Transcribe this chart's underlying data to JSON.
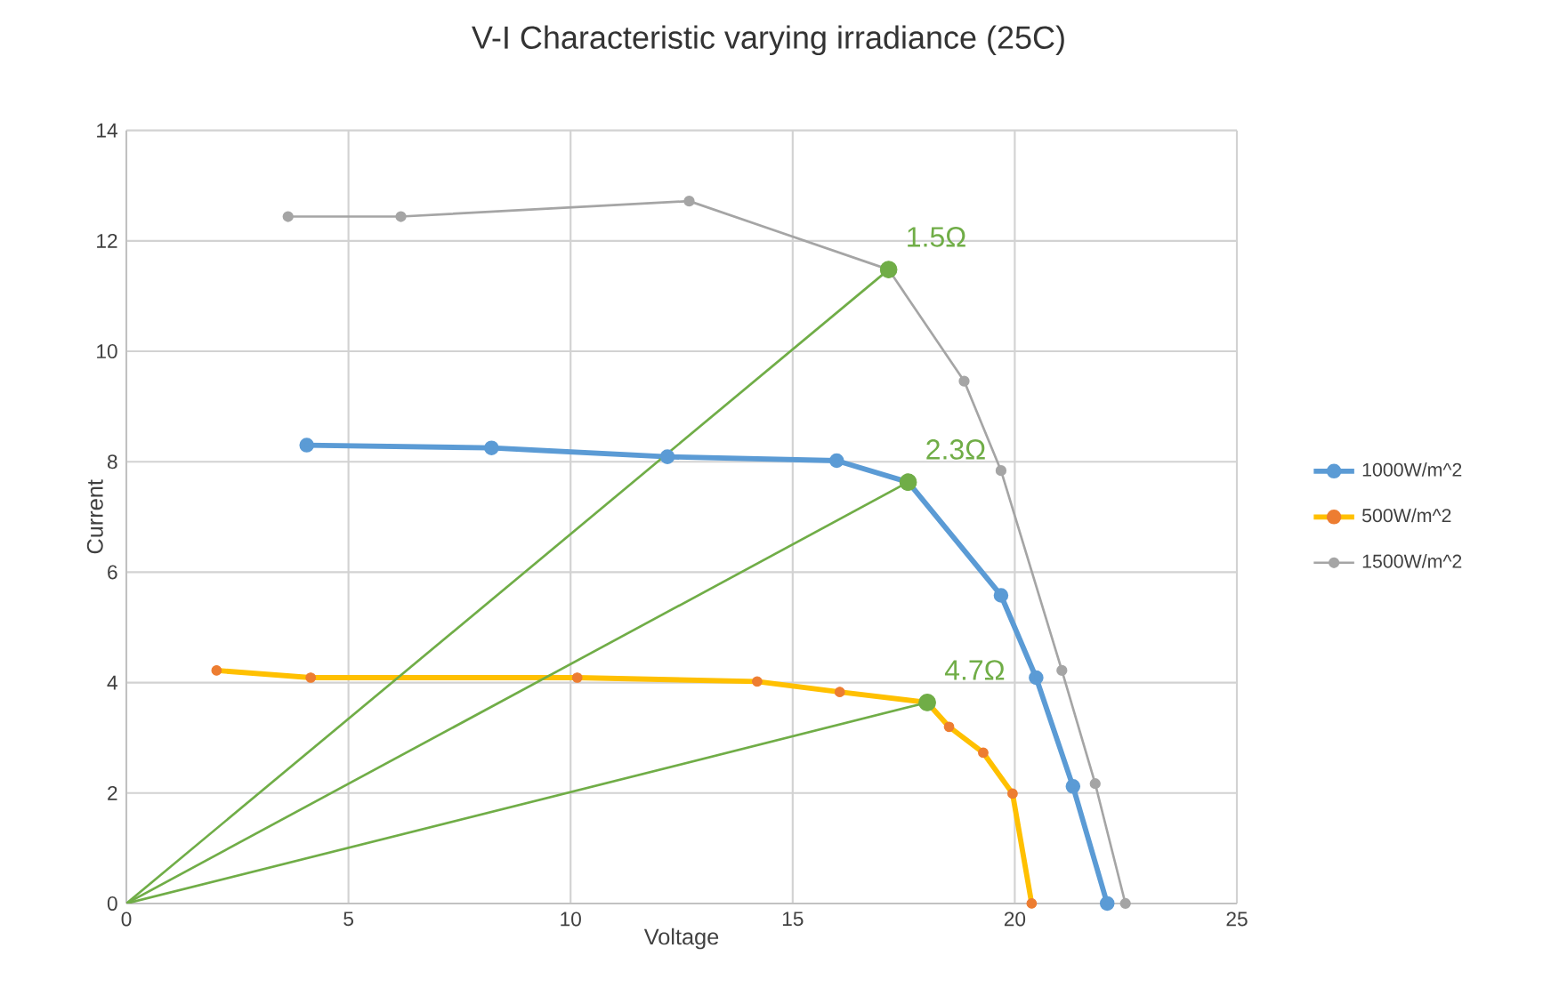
{
  "chart_data": {
    "type": "line",
    "title": "V-I Characteristic varying irradiance (25C)",
    "xlabel": "Voltage",
    "ylabel": "Current",
    "xlim": [
      0,
      25
    ],
    "xticks": [
      0,
      5,
      10,
      15,
      20,
      25
    ],
    "ylim": [
      0,
      14
    ],
    "yticks": [
      0,
      2,
      4,
      6,
      8,
      10,
      12,
      14
    ],
    "grid": true,
    "legend": "right",
    "marker": "circle",
    "series": [
      {
        "name": "1000W/m^2",
        "color": "#5b9bd5",
        "x": [
          4.06,
          8.22,
          12.18,
          15.99,
          17.6,
          19.69,
          20.48,
          21.31,
          22.08
        ],
        "values": [
          8.3,
          8.25,
          8.09,
          8.02,
          7.63,
          5.58,
          4.09,
          2.12,
          0
        ]
      },
      {
        "name": "500W/m^2",
        "color": "#ffc000",
        "colors": [
          "#ed7d31",
          "#ed7d31",
          "#ed7d31",
          "#ed7d31",
          "#ed7d31",
          "#ed7d31",
          "#ed7d31",
          "#ed7d31",
          "#ed7d31",
          "#ed7d31"
        ],
        "x": [
          2.03,
          4.15,
          10.15,
          14.2,
          16.06,
          18.03,
          18.52,
          19.29,
          19.95,
          20.38
        ],
        "values": [
          4.22,
          4.09,
          4.09,
          4.02,
          3.83,
          3.64,
          3.2,
          2.73,
          1.99,
          0
        ]
      },
      {
        "name": "1500W/m^2",
        "color": "#a5a5a5",
        "x": [
          3.64,
          6.18,
          12.67,
          17.16,
          18.86,
          19.69,
          21.06,
          21.81,
          22.49
        ],
        "values": [
          12.44,
          12.44,
          12.72,
          11.48,
          9.46,
          7.84,
          4.22,
          2.17,
          0
        ]
      },
      {
        "type": "line",
        "color": "#70ad47",
        "marker": "none",
        "x": [
          0,
          17.16
        ],
        "values": [
          0,
          11.48
        ]
      },
      {
        "type": "line",
        "color": "#70ad47",
        "marker": "none",
        "x": [
          0,
          17.6
        ],
        "values": [
          0,
          7.63
        ]
      },
      {
        "type": "line",
        "color": "#70ad47",
        "marker": "none",
        "x": [
          0,
          18.03
        ],
        "values": [
          0,
          3.64
        ]
      },
      {
        "type": "scatter",
        "color": "#70ad47",
        "x": [
          17.16,
          17.6,
          18.03
        ],
        "values": [
          11.48,
          7.63,
          3.64
        ]
      }
    ],
    "annotations": [
      {
        "text": "1.5Ω",
        "x": 17.16,
        "y": 11.48
      },
      {
        "text": "2.3Ω",
        "x": 17.6,
        "y": 7.63
      },
      {
        "text": "4.7Ω",
        "x": 18.03,
        "y": 3.64
      }
    ]
  }
}
